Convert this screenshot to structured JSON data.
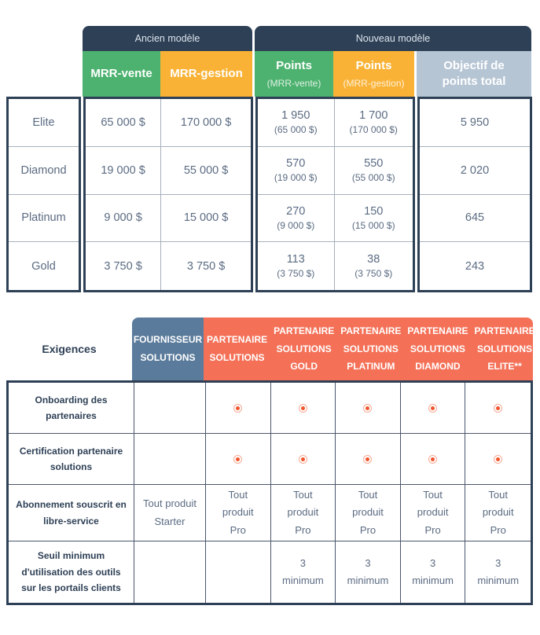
{
  "colors": {
    "navy": "#2e4056",
    "green": "#4db26f",
    "orange": "#f9b235",
    "light_bluegray": "#b6c5d4",
    "steel_blue": "#5a7b9b",
    "coral": "#f47158",
    "radio_icon_ring": "#f8a892",
    "radio_icon_dot": "#f2552c",
    "body_text": "#5b6b82"
  },
  "top": {
    "titles": {
      "ancien": "Ancien modèle",
      "nouveau": "Nouveau modèle"
    },
    "col_mrr_vente": "MRR-vente",
    "col_mrr_gestion": "MRR-gestion",
    "col_points": "Points",
    "col_points_vente_sub": "(MRR-vente)",
    "col_points_gestion_sub": "(MRR-gestion)",
    "col_objectif": "Objectif de points total",
    "rows": [
      {
        "tier": "Elite",
        "mrr_vente": "65 000 $",
        "mrr_gestion": "170 000 $",
        "pv": "1 950",
        "pv_sub": "(65 000 $)",
        "pg": "1 700",
        "pg_sub": "(170 000 $)",
        "total": "5 950"
      },
      {
        "tier": "Diamond",
        "mrr_vente": "19 000 $",
        "mrr_gestion": "55 000 $",
        "pv": "570",
        "pv_sub": "(19 000 $)",
        "pg": "550",
        "pg_sub": "(55 000 $)",
        "total": "2 020"
      },
      {
        "tier": "Platinum",
        "mrr_vente": "9 000 $",
        "mrr_gestion": "15 000 $",
        "pv": "270",
        "pv_sub": "(9 000 $)",
        "pg": "150",
        "pg_sub": "(15 000 $)",
        "total": "645"
      },
      {
        "tier": "Gold",
        "mrr_vente": "3 750 $",
        "mrr_gestion": "3 750 $",
        "pv": "113",
        "pv_sub": "(3 750 $)",
        "pg": "38",
        "pg_sub": "(3 750 $)",
        "total": "243"
      }
    ]
  },
  "bottom": {
    "title": "Exigences",
    "col_fournisseur": "FOURNISSEUR SOLUTIONS",
    "cols_partenaire": [
      "PARTENAIRE SOLUTIONS",
      "PARTENAIRE SOLUTIONS GOLD",
      "PARTENAIRE SOLUTIONS PLATINUM",
      "PARTENAIRE SOLUTIONS DIAMOND",
      "PARTENAIRE SOLUTIONS ELITE**"
    ],
    "rows": [
      {
        "label": "Onboarding des partenaires"
      },
      {
        "label": "Certification partenaire solutions"
      },
      {
        "label": "Abonnement souscrit en libre-service",
        "cells": [
          "Tout produit Starter",
          "Tout produit Pro",
          "Tout produit Pro",
          "Tout produit Pro",
          "Tout produit Pro",
          "Tout produit Pro"
        ]
      },
      {
        "label": "Seuil minimum d'utilisation des outils sur les portails clients",
        "cells": [
          "",
          "",
          "3 minimum",
          "3 minimum",
          "3 minimum",
          "3 minimum"
        ]
      }
    ]
  }
}
